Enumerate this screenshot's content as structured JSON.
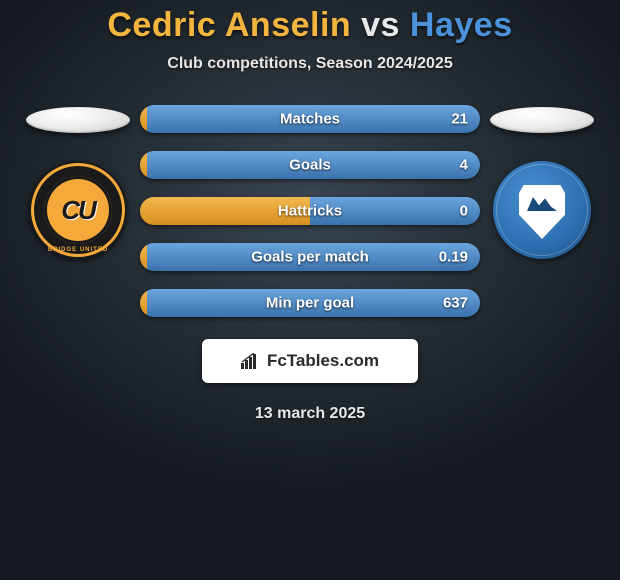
{
  "title": {
    "player1": "Cedric Anselin",
    "vs": "vs",
    "player2": "Hayes"
  },
  "subtitle": "Club competitions, Season 2024/2025",
  "colors": {
    "player1": "#f4b53f",
    "player2": "#4a92d9",
    "bar_left_top": "#f3b84e",
    "bar_left_bottom": "#d68f1e",
    "bar_right_top": "#6aa5de",
    "bar_right_bottom": "#3a72ac",
    "text": "#ffffff"
  },
  "logos": {
    "left_abbrev": "CU",
    "left_ring_text": "BRIDGE UNITED"
  },
  "stats": [
    {
      "label": "Matches",
      "left_pct": 2,
      "right_pct": 98,
      "right_value": "21"
    },
    {
      "label": "Goals",
      "left_pct": 2,
      "right_pct": 98,
      "right_value": "4"
    },
    {
      "label": "Hattricks",
      "left_pct": 50,
      "right_pct": 50,
      "right_value": "0"
    },
    {
      "label": "Goals per match",
      "left_pct": 2,
      "right_pct": 98,
      "right_value": "0.19"
    },
    {
      "label": "Min per goal",
      "left_pct": 2,
      "right_pct": 98,
      "right_value": "637"
    }
  ],
  "footer_brand": "FcTables.com",
  "date": "13 march 2025"
}
